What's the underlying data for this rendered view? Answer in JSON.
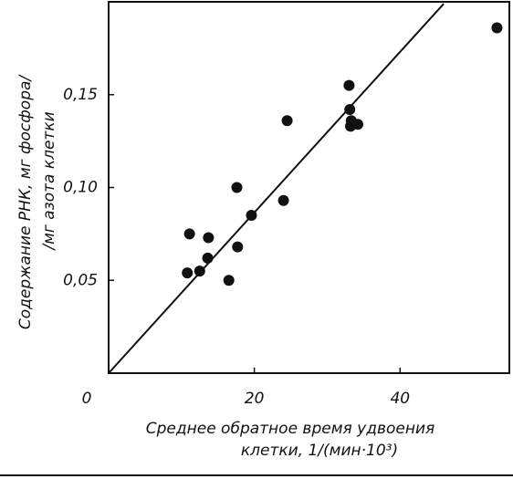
{
  "chart_data": {
    "type": "scatter",
    "xlabel": [
      "Среднее обратное время  удвоения",
      "клетки, 1/(мин·10³)"
    ],
    "ylabel": [
      "Содержание РНК, мг фосфора/",
      "/мг азота клетки"
    ],
    "xlim": [
      0,
      55
    ],
    "ylim": [
      0,
      0.2
    ],
    "xticks": [
      0,
      20,
      40
    ],
    "yticks": [
      {
        "value": 0.05,
        "label": "0,05"
      },
      {
        "value": 0.1,
        "label": "0,10"
      },
      {
        "value": 0.15,
        "label": "0,15"
      }
    ],
    "color": "#111111",
    "x": [
      10.8,
      11.1,
      12.5,
      13.7,
      13.6,
      16.5,
      17.6,
      17.7,
      19.6,
      24.0,
      24.5,
      33.0,
      33.1,
      33.2,
      34.2,
      33.3,
      53.3
    ],
    "y": [
      0.054,
      0.075,
      0.055,
      0.073,
      0.062,
      0.05,
      0.1,
      0.068,
      0.085,
      0.093,
      0.136,
      0.155,
      0.142,
      0.133,
      0.134,
      0.136,
      0.186
    ],
    "fit_line": {
      "x": [
        0,
        46
      ],
      "y": [
        0,
        0.199
      ]
    }
  }
}
